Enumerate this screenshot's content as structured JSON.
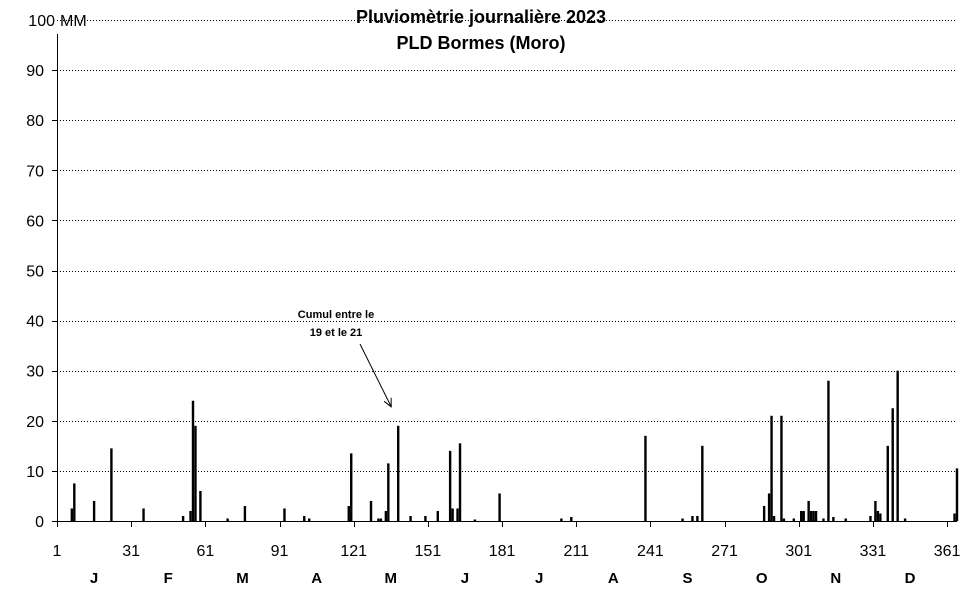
{
  "chart_data": {
    "type": "bar",
    "title": "Pluviomètrie journalière 2023",
    "subtitle": "PLD Bormes (Moro)",
    "ylabel": "MM",
    "ylim": [
      0,
      100
    ],
    "yticks": [
      0,
      10,
      20,
      30,
      40,
      50,
      60,
      70,
      80,
      90,
      100
    ],
    "xlim": [
      1,
      365
    ],
    "xticks": [
      1,
      31,
      61,
      91,
      121,
      151,
      181,
      211,
      241,
      271,
      301,
      331,
      361
    ],
    "grid": true,
    "months": [
      {
        "label": "J",
        "day": 16
      },
      {
        "label": "F",
        "day": 46
      },
      {
        "label": "M",
        "day": 76
      },
      {
        "label": "A",
        "day": 106
      },
      {
        "label": "M",
        "day": 136
      },
      {
        "label": "J",
        "day": 166
      },
      {
        "label": "J",
        "day": 196
      },
      {
        "label": "A",
        "day": 226
      },
      {
        "label": "S",
        "day": 256
      },
      {
        "label": "O",
        "day": 286
      },
      {
        "label": "N",
        "day": 316
      },
      {
        "label": "D",
        "day": 346
      }
    ],
    "series": [
      {
        "values": [
          {
            "day": 7,
            "mm": 2.5
          },
          {
            "day": 8,
            "mm": 7.5
          },
          {
            "day": 16,
            "mm": 4
          },
          {
            "day": 23,
            "mm": 14.5
          },
          {
            "day": 36,
            "mm": 2.5
          },
          {
            "day": 52,
            "mm": 1
          },
          {
            "day": 55,
            "mm": 2
          },
          {
            "day": 56,
            "mm": 24
          },
          {
            "day": 57,
            "mm": 19
          },
          {
            "day": 59,
            "mm": 6
          },
          {
            "day": 70,
            "mm": 0.5
          },
          {
            "day": 77,
            "mm": 3
          },
          {
            "day": 93,
            "mm": 2.5
          },
          {
            "day": 101,
            "mm": 1
          },
          {
            "day": 103,
            "mm": 0.5
          },
          {
            "day": 119,
            "mm": 3
          },
          {
            "day": 120,
            "mm": 13.5
          },
          {
            "day": 128,
            "mm": 4
          },
          {
            "day": 131,
            "mm": 0.5
          },
          {
            "day": 132,
            "mm": 0.5
          },
          {
            "day": 134,
            "mm": 2
          },
          {
            "day": 135,
            "mm": 11.5
          },
          {
            "day": 139,
            "mm": 19
          },
          {
            "day": 144,
            "mm": 1
          },
          {
            "day": 150,
            "mm": 1
          },
          {
            "day": 155,
            "mm": 2
          },
          {
            "day": 160,
            "mm": 14
          },
          {
            "day": 161,
            "mm": 2.5
          },
          {
            "day": 163,
            "mm": 2.5
          },
          {
            "day": 164,
            "mm": 15.5
          },
          {
            "day": 170,
            "mm": 0.3
          },
          {
            "day": 180,
            "mm": 5.5
          },
          {
            "day": 205,
            "mm": 0.5
          },
          {
            "day": 209,
            "mm": 0.8
          },
          {
            "day": 239,
            "mm": 17
          },
          {
            "day": 254,
            "mm": 0.5
          },
          {
            "day": 258,
            "mm": 1
          },
          {
            "day": 260,
            "mm": 1
          },
          {
            "day": 262,
            "mm": 15
          },
          {
            "day": 287,
            "mm": 3
          },
          {
            "day": 289,
            "mm": 5.5
          },
          {
            "day": 290,
            "mm": 21
          },
          {
            "day": 291,
            "mm": 1
          },
          {
            "day": 294,
            "mm": 21
          },
          {
            "day": 295,
            "mm": 0.5
          },
          {
            "day": 299,
            "mm": 0.5
          },
          {
            "day": 302,
            "mm": 2
          },
          {
            "day": 303,
            "mm": 2
          },
          {
            "day": 305,
            "mm": 4
          },
          {
            "day": 306,
            "mm": 2
          },
          {
            "day": 307,
            "mm": 2
          },
          {
            "day": 308,
            "mm": 2
          },
          {
            "day": 311,
            "mm": 0.5
          },
          {
            "day": 313,
            "mm": 28
          },
          {
            "day": 315,
            "mm": 0.8
          },
          {
            "day": 320,
            "mm": 0.5
          },
          {
            "day": 330,
            "mm": 1
          },
          {
            "day": 332,
            "mm": 4
          },
          {
            "day": 333,
            "mm": 2
          },
          {
            "day": 334,
            "mm": 1.5
          },
          {
            "day": 337,
            "mm": 15
          },
          {
            "day": 339,
            "mm": 22.5
          },
          {
            "day": 341,
            "mm": 30
          },
          {
            "day": 344,
            "mm": 0.5
          },
          {
            "day": 364,
            "mm": 1.5
          },
          {
            "day": 365,
            "mm": 10.5
          }
        ]
      }
    ],
    "annotations": [
      {
        "lines": [
          "Cumul entre le",
          "19 et le 21"
        ],
        "target_day": 139
      }
    ]
  }
}
